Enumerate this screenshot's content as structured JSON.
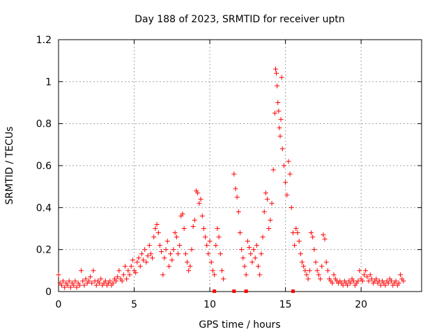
{
  "chart_data": {
    "type": "scatter",
    "title": "Day 188 of 2023, SRMTID for receiver uptn",
    "xlabel": "GPS time / hours",
    "ylabel": "SRMTID / TECUs",
    "xlim": [
      0,
      24
    ],
    "ylim": [
      0,
      1.2
    ],
    "xticks": [
      0,
      5,
      10,
      15,
      20
    ],
    "yticks": [
      0,
      0.2,
      0.4,
      0.6,
      0.8,
      1,
      1.2
    ],
    "xtick_labels": [
      "0",
      "5",
      "10",
      "15",
      "20"
    ],
    "ytick_labels": [
      "0",
      "0.2",
      "0.4",
      "0.6",
      "0.8",
      "1",
      "1.2"
    ],
    "grid": true,
    "marker": "+",
    "colors": {
      "series": "#ff0000",
      "grid": "#a0a0a0",
      "axes": "#000000"
    },
    "series": [
      {
        "name": "SRMTID",
        "points": [
          [
            0.0,
            0.08
          ],
          [
            0.1,
            0.04
          ],
          [
            0.2,
            0.03
          ],
          [
            0.3,
            0.05
          ],
          [
            0.4,
            0.02
          ],
          [
            0.5,
            0.04
          ],
          [
            0.6,
            0.03
          ],
          [
            0.7,
            0.05
          ],
          [
            0.8,
            0.02
          ],
          [
            0.9,
            0.04
          ],
          [
            1.0,
            0.03
          ],
          [
            1.1,
            0.05
          ],
          [
            1.2,
            0.02
          ],
          [
            1.3,
            0.04
          ],
          [
            1.4,
            0.03
          ],
          [
            1.5,
            0.1
          ],
          [
            1.6,
            0.05
          ],
          [
            1.7,
            0.03
          ],
          [
            1.8,
            0.06
          ],
          [
            1.9,
            0.04
          ],
          [
            2.0,
            0.05
          ],
          [
            2.1,
            0.07
          ],
          [
            2.2,
            0.04
          ],
          [
            2.3,
            0.1
          ],
          [
            2.4,
            0.05
          ],
          [
            2.5,
            0.03
          ],
          [
            2.6,
            0.05
          ],
          [
            2.7,
            0.04
          ],
          [
            2.8,
            0.06
          ],
          [
            2.9,
            0.03
          ],
          [
            3.0,
            0.04
          ],
          [
            3.1,
            0.05
          ],
          [
            3.2,
            0.03
          ],
          [
            3.3,
            0.04
          ],
          [
            3.4,
            0.05
          ],
          [
            3.5,
            0.03
          ],
          [
            3.6,
            0.04
          ],
          [
            3.7,
            0.06
          ],
          [
            3.8,
            0.05
          ],
          [
            3.9,
            0.07
          ],
          [
            4.0,
            0.1
          ],
          [
            4.1,
            0.06
          ],
          [
            4.2,
            0.05
          ],
          [
            4.3,
            0.08
          ],
          [
            4.4,
            0.12
          ],
          [
            4.5,
            0.06
          ],
          [
            4.6,
            0.1
          ],
          [
            4.7,
            0.08
          ],
          [
            4.8,
            0.12
          ],
          [
            4.9,
            0.15
          ],
          [
            5.0,
            0.1
          ],
          [
            5.1,
            0.09
          ],
          [
            5.2,
            0.14
          ],
          [
            5.3,
            0.16
          ],
          [
            5.4,
            0.12
          ],
          [
            5.5,
            0.18
          ],
          [
            5.6,
            0.15
          ],
          [
            5.7,
            0.2
          ],
          [
            5.8,
            0.14
          ],
          [
            5.9,
            0.17
          ],
          [
            6.0,
            0.22
          ],
          [
            6.1,
            0.18
          ],
          [
            6.2,
            0.16
          ],
          [
            6.3,
            0.26
          ],
          [
            6.4,
            0.3
          ],
          [
            6.5,
            0.32
          ],
          [
            6.6,
            0.28
          ],
          [
            6.7,
            0.22
          ],
          [
            6.8,
            0.19
          ],
          [
            6.9,
            0.08
          ],
          [
            7.0,
            0.16
          ],
          [
            7.1,
            0.2
          ],
          [
            7.2,
            0.24
          ],
          [
            7.3,
            0.12
          ],
          [
            7.4,
            0.18
          ],
          [
            7.5,
            0.15
          ],
          [
            7.6,
            0.2
          ],
          [
            7.7,
            0.28
          ],
          [
            7.8,
            0.26
          ],
          [
            7.9,
            0.18
          ],
          [
            8.0,
            0.22
          ],
          [
            8.1,
            0.36
          ],
          [
            8.2,
            0.37
          ],
          [
            8.3,
            0.3
          ],
          [
            8.4,
            0.18
          ],
          [
            8.5,
            0.14
          ],
          [
            8.6,
            0.1
          ],
          [
            8.7,
            0.12
          ],
          [
            8.8,
            0.2
          ],
          [
            8.9,
            0.31
          ],
          [
            9.0,
            0.34
          ],
          [
            9.1,
            0.48
          ],
          [
            9.2,
            0.47
          ],
          [
            9.3,
            0.42
          ],
          [
            9.4,
            0.44
          ],
          [
            9.5,
            0.36
          ],
          [
            9.6,
            0.3
          ],
          [
            9.7,
            0.26
          ],
          [
            9.8,
            0.22
          ],
          [
            9.9,
            0.18
          ],
          [
            10.0,
            0.24
          ],
          [
            10.1,
            0.14
          ],
          [
            10.2,
            0.1
          ],
          [
            10.3,
            0.08
          ],
          [
            10.4,
            0.22
          ],
          [
            10.5,
            0.3
          ],
          [
            10.6,
            0.26
          ],
          [
            10.7,
            0.18
          ],
          [
            10.8,
            0.1
          ],
          [
            10.9,
            0.06
          ],
          [
            11.6,
            0.56
          ],
          [
            11.7,
            0.49
          ],
          [
            11.8,
            0.45
          ],
          [
            11.9,
            0.38
          ],
          [
            12.0,
            0.28
          ],
          [
            12.1,
            0.2
          ],
          [
            12.2,
            0.16
          ],
          [
            12.3,
            0.12
          ],
          [
            12.4,
            0.08
          ],
          [
            12.5,
            0.24
          ],
          [
            12.6,
            0.21
          ],
          [
            12.7,
            0.18
          ],
          [
            12.8,
            0.14
          ],
          [
            12.9,
            0.2
          ],
          [
            13.0,
            0.16
          ],
          [
            13.1,
            0.22
          ],
          [
            13.2,
            0.12
          ],
          [
            13.3,
            0.08
          ],
          [
            13.4,
            0.18
          ],
          [
            13.5,
            0.26
          ],
          [
            13.6,
            0.38
          ],
          [
            13.7,
            0.47
          ],
          [
            13.8,
            0.44
          ],
          [
            13.9,
            0.3
          ],
          [
            14.0,
            0.34
          ],
          [
            14.1,
            0.42
          ],
          [
            14.2,
            0.58
          ],
          [
            14.3,
            0.85
          ],
          [
            14.35,
            1.06
          ],
          [
            14.4,
            1.04
          ],
          [
            14.45,
            0.98
          ],
          [
            14.5,
            0.9
          ],
          [
            14.55,
            0.86
          ],
          [
            14.6,
            0.78
          ],
          [
            14.65,
            0.74
          ],
          [
            14.7,
            0.82
          ],
          [
            14.75,
            1.02
          ],
          [
            14.8,
            0.68
          ],
          [
            14.9,
            0.6
          ],
          [
            15.0,
            0.52
          ],
          [
            15.1,
            0.46
          ],
          [
            15.2,
            0.62
          ],
          [
            15.3,
            0.56
          ],
          [
            15.4,
            0.4
          ],
          [
            15.5,
            0.28
          ],
          [
            15.6,
            0.22
          ],
          [
            15.7,
            0.3
          ],
          [
            15.8,
            0.28
          ],
          [
            15.9,
            0.24
          ],
          [
            16.0,
            0.18
          ],
          [
            16.1,
            0.14
          ],
          [
            16.2,
            0.12
          ],
          [
            16.3,
            0.1
          ],
          [
            16.4,
            0.08
          ],
          [
            16.5,
            0.06
          ],
          [
            16.6,
            0.1
          ],
          [
            16.7,
            0.28
          ],
          [
            16.8,
            0.26
          ],
          [
            16.9,
            0.2
          ],
          [
            17.0,
            0.14
          ],
          [
            17.1,
            0.1
          ],
          [
            17.2,
            0.08
          ],
          [
            17.3,
            0.06
          ],
          [
            17.4,
            0.12
          ],
          [
            17.5,
            0.27
          ],
          [
            17.6,
            0.25
          ],
          [
            17.7,
            0.14
          ],
          [
            17.8,
            0.1
          ],
          [
            17.9,
            0.06
          ],
          [
            18.0,
            0.05
          ],
          [
            18.1,
            0.04
          ],
          [
            18.2,
            0.08
          ],
          [
            18.3,
            0.06
          ],
          [
            18.4,
            0.05
          ],
          [
            18.5,
            0.04
          ],
          [
            18.6,
            0.05
          ],
          [
            18.7,
            0.04
          ],
          [
            18.8,
            0.03
          ],
          [
            18.9,
            0.05
          ],
          [
            19.0,
            0.04
          ],
          [
            19.1,
            0.03
          ],
          [
            19.2,
            0.05
          ],
          [
            19.3,
            0.04
          ],
          [
            19.4,
            0.06
          ],
          [
            19.5,
            0.05
          ],
          [
            19.6,
            0.03
          ],
          [
            19.7,
            0.04
          ],
          [
            19.8,
            0.05
          ],
          [
            19.9,
            0.1
          ],
          [
            20.0,
            0.06
          ],
          [
            20.1,
            0.05
          ],
          [
            20.2,
            0.08
          ],
          [
            20.3,
            0.1
          ],
          [
            20.4,
            0.07
          ],
          [
            20.5,
            0.05
          ],
          [
            20.6,
            0.08
          ],
          [
            20.7,
            0.06
          ],
          [
            20.8,
            0.04
          ],
          [
            20.9,
            0.05
          ],
          [
            21.0,
            0.06
          ],
          [
            21.1,
            0.04
          ],
          [
            21.2,
            0.05
          ],
          [
            21.3,
            0.03
          ],
          [
            21.4,
            0.05
          ],
          [
            21.5,
            0.04
          ],
          [
            21.6,
            0.03
          ],
          [
            21.7,
            0.05
          ],
          [
            21.8,
            0.04
          ],
          [
            21.9,
            0.06
          ],
          [
            22.0,
            0.05
          ],
          [
            22.1,
            0.03
          ],
          [
            22.2,
            0.04
          ],
          [
            22.3,
            0.05
          ],
          [
            22.4,
            0.03
          ],
          [
            22.5,
            0.04
          ],
          [
            22.6,
            0.08
          ],
          [
            22.7,
            0.06
          ],
          [
            22.8,
            0.05
          ]
        ]
      }
    ],
    "axis_markers": [
      10.3,
      11.6,
      12.4,
      15.5
    ]
  }
}
